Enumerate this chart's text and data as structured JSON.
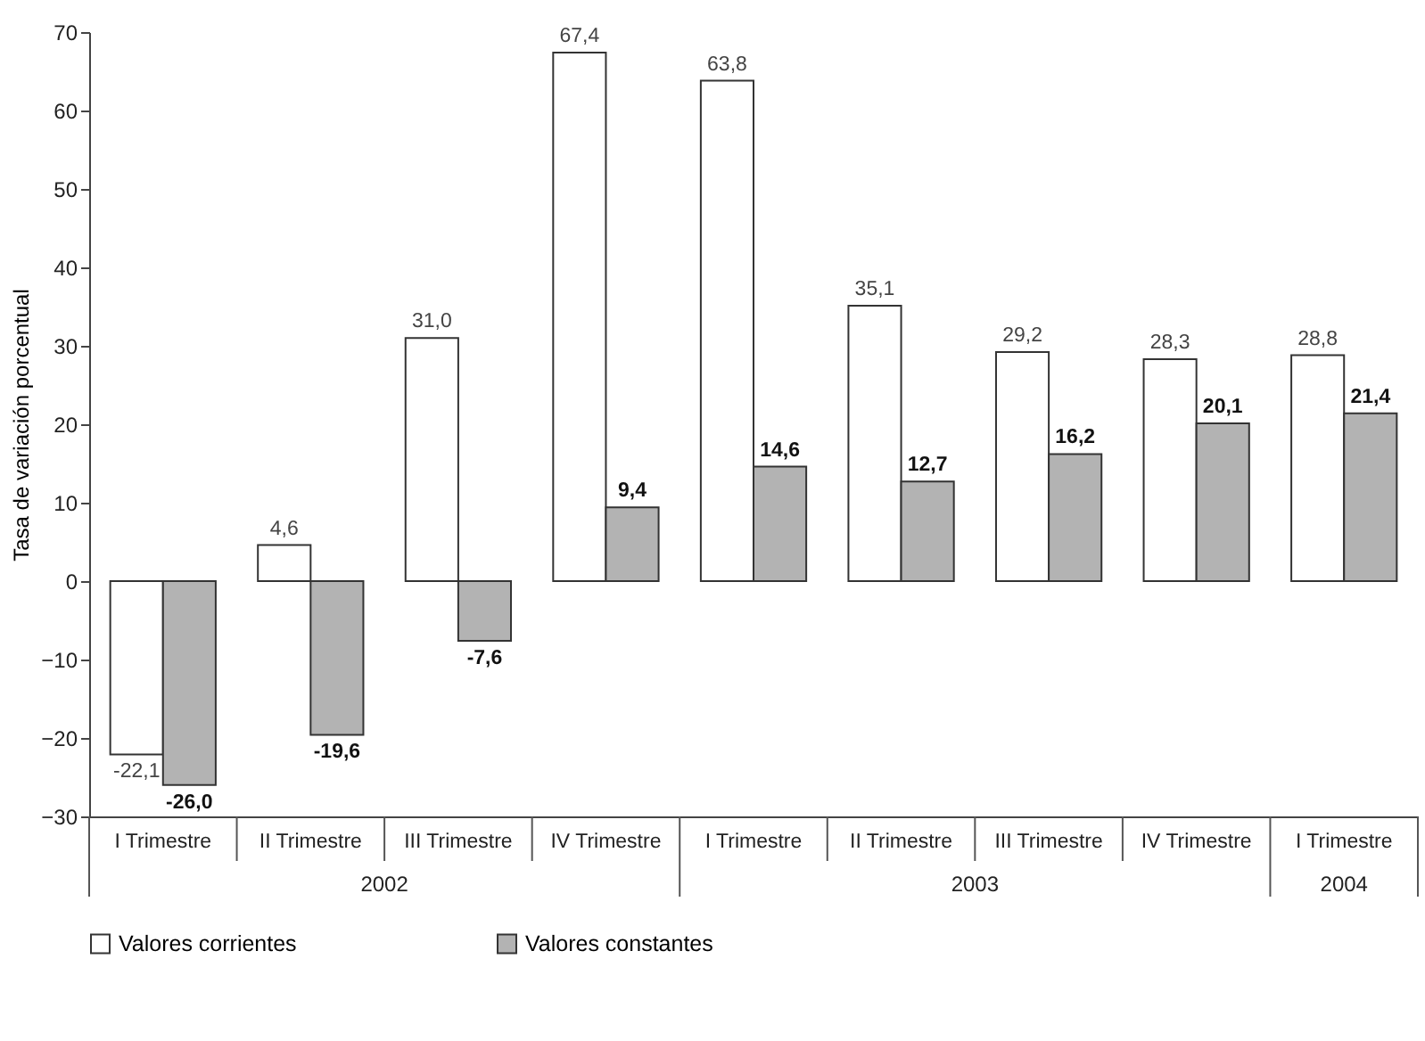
{
  "chart_data": {
    "type": "bar",
    "ylabel": "Tasa de variación porcentual",
    "categories": [
      "I Trimestre",
      "II Trimestre",
      "III Trimestre",
      "IV Trimestre",
      "I Trimestre",
      "II Trimestre",
      "III Trimestre",
      "IV Trimestre",
      "I Trimestre"
    ],
    "annotations": [
      "2002",
      "2003",
      "2004"
    ],
    "series": [
      {
        "name": "Valores corrientes",
        "color": "#ffffff",
        "values": [
          -22.1,
          4.6,
          31.0,
          67.4,
          63.8,
          35.1,
          29.2,
          28.3,
          28.8
        ],
        "value_labels": [
          "-22,1",
          "4,6",
          "31,0",
          "67,4",
          "63,8",
          "35,1",
          "29,2",
          "28,3",
          "28,8"
        ]
      },
      {
        "name": "Valores constantes",
        "color": "#b3b3b3",
        "values": [
          -26.0,
          -19.6,
          -7.6,
          9.4,
          14.6,
          12.7,
          16.2,
          20.1,
          21.4
        ],
        "value_labels": [
          "-26,0",
          "-19,6",
          "-7,6",
          "9,4",
          "14,6",
          "12,7",
          "16,2",
          "20,1",
          "21,4"
        ]
      }
    ],
    "ylim": [
      -30,
      70
    ],
    "yticks": [
      -30,
      -20,
      -10,
      0,
      10,
      20,
      30,
      40,
      50,
      60,
      70
    ],
    "grid": false,
    "legend": "bottom"
  }
}
